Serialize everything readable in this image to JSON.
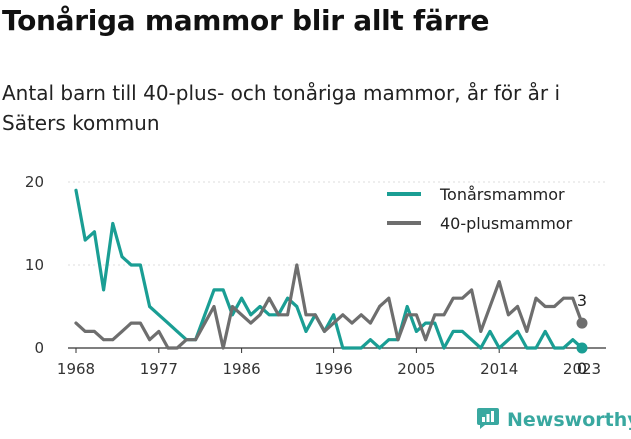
{
  "title": "Tonåriga mammor blir allt färre",
  "subtitle": "Antal barn till 40-plus- och tonåriga mammor, år för år i Säters kommun",
  "brand": {
    "name": "Newsworthy",
    "icon": "newsworthy-logo-icon",
    "color": "#39a8a0"
  },
  "chart_data": {
    "type": "line",
    "title": "",
    "xlabel": "",
    "ylabel": "",
    "xlim": [
      1968,
      2023
    ],
    "ylim": [
      0,
      20
    ],
    "x_ticks": [
      "1968",
      "1977",
      "1986",
      "1996",
      "2005",
      "2014",
      "2023"
    ],
    "y_ticks": [
      "0",
      "10",
      "20"
    ],
    "grid": "horizontal",
    "legend_position": "top-right",
    "x": [
      1968,
      1969,
      1970,
      1971,
      1972,
      1973,
      1974,
      1975,
      1976,
      1977,
      1978,
      1979,
      1980,
      1981,
      1982,
      1983,
      1984,
      1985,
      1986,
      1987,
      1988,
      1989,
      1990,
      1991,
      1992,
      1993,
      1994,
      1995,
      1996,
      1997,
      1998,
      1999,
      2000,
      2001,
      2002,
      2003,
      2004,
      2005,
      2006,
      2007,
      2008,
      2009,
      2010,
      2011,
      2012,
      2013,
      2014,
      2015,
      2016,
      2017,
      2018,
      2019,
      2020,
      2021,
      2022,
      2023
    ],
    "series": [
      {
        "name": "Tonårsmammor",
        "color": "#1a9e94",
        "values": [
          19,
          13,
          14,
          7,
          15,
          11,
          10,
          10,
          5,
          4,
          3,
          2,
          1,
          1,
          4,
          7,
          7,
          4,
          6,
          4,
          5,
          4,
          4,
          6,
          5,
          2,
          4,
          2,
          4,
          0,
          0,
          0,
          1,
          0,
          1,
          1,
          5,
          2,
          3,
          3,
          0,
          2,
          2,
          1,
          0,
          2,
          0,
          1,
          2,
          0,
          0,
          2,
          0,
          0,
          1,
          0
        ],
        "end_label": "0"
      },
      {
        "name": "40-plusmammor",
        "color": "#6e6e6e",
        "values": [
          3,
          2,
          2,
          1,
          1,
          2,
          3,
          3,
          1,
          2,
          0,
          0,
          1,
          1,
          3,
          5,
          0,
          5,
          4,
          3,
          4,
          6,
          4,
          4,
          10,
          4,
          4,
          2,
          3,
          4,
          3,
          4,
          3,
          5,
          6,
          1,
          4,
          4,
          1,
          4,
          4,
          6,
          6,
          7,
          2,
          5,
          8,
          4,
          5,
          2,
          6,
          5,
          5,
          6,
          6,
          3
        ],
        "end_label": "3"
      }
    ]
  }
}
